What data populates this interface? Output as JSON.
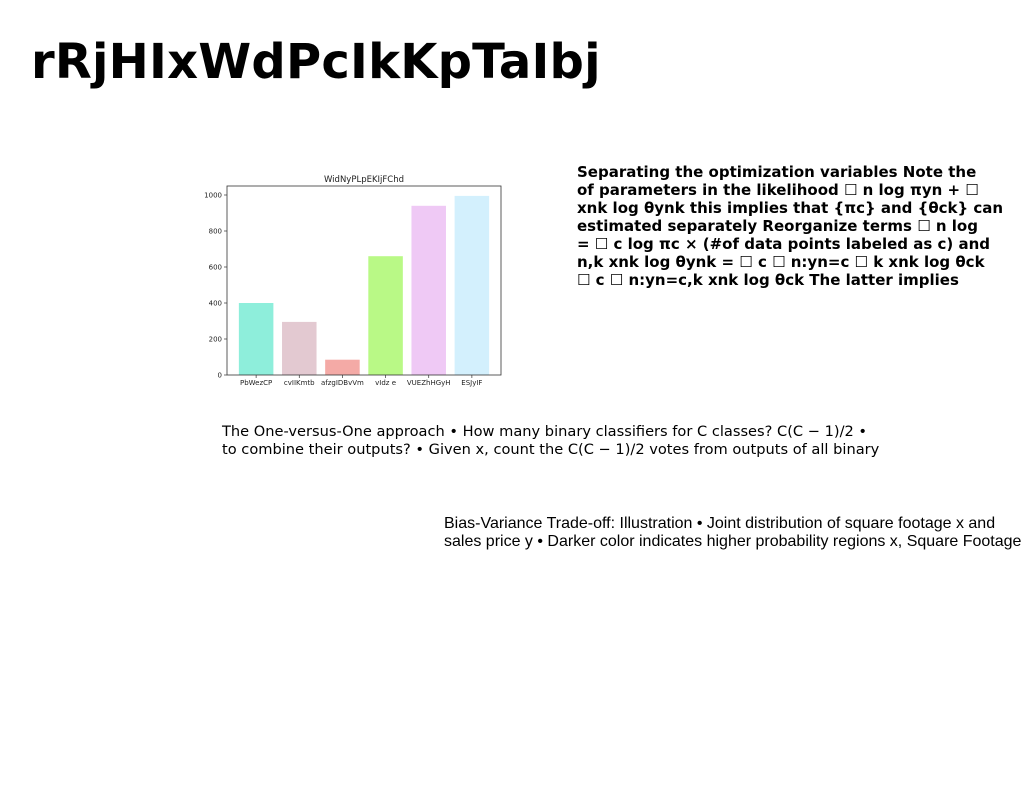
{
  "slide": {
    "title": "rRjHIxWdPcIkKpTaIbj"
  },
  "bold_text": {
    "lines": [
      "Separating the optimization variables Note the",
      "of parameters in the likelihood ☐ n log πyn + ☐",
      "xnk log θynk this implies that {πc} and {θck} can",
      "estimated separately Reorganize terms ☐ n log",
      "= ☐ c log πc × (#of data points labeled as c) and",
      "n,k xnk log θynk = ☐ c ☐ n:yn=c ☐ k xnk log θck",
      "☐ c ☐ n:yn=c,k xnk log θck The latter implies"
    ]
  },
  "one_vs_one_text": {
    "lines": [
      "The One-versus-One approach • How many binary classifiers for C classes? C(C − 1)/2 •",
      "to combine their outputs? • Given x, count the C(C − 1)/2 votes from outputs of all binary"
    ]
  },
  "bias_variance_text": {
    "lines": [
      "Bias-Variance Trade-off: Illustration • Joint distribution of square footage x and",
      "sales price y • Darker color indicates higher probability regions x, Square Footage"
    ]
  },
  "chart_data": {
    "type": "bar",
    "title": "WidNyPLpEKIjFChd",
    "categories": [
      "PbWezCP",
      "cvIIKmtb",
      "afzgIDBvVm",
      "vIdz e",
      "VUEZhHGyH",
      "ESJyIF"
    ],
    "values": [
      400,
      295,
      85,
      660,
      940,
      995
    ],
    "colors": [
      "#8eeedb",
      "#e3c9d1",
      "#f4aaa6",
      "#b9f986",
      "#efc9f5",
      "#d3f0fd"
    ],
    "ylim": [
      0,
      1050
    ],
    "yticks": [
      0,
      200,
      400,
      600,
      800,
      1000
    ],
    "ytick_labels": [
      "0",
      "200",
      "400",
      "600",
      "800",
      "1000"
    ],
    "xlabel": "",
    "ylabel": "",
    "grid": false
  }
}
